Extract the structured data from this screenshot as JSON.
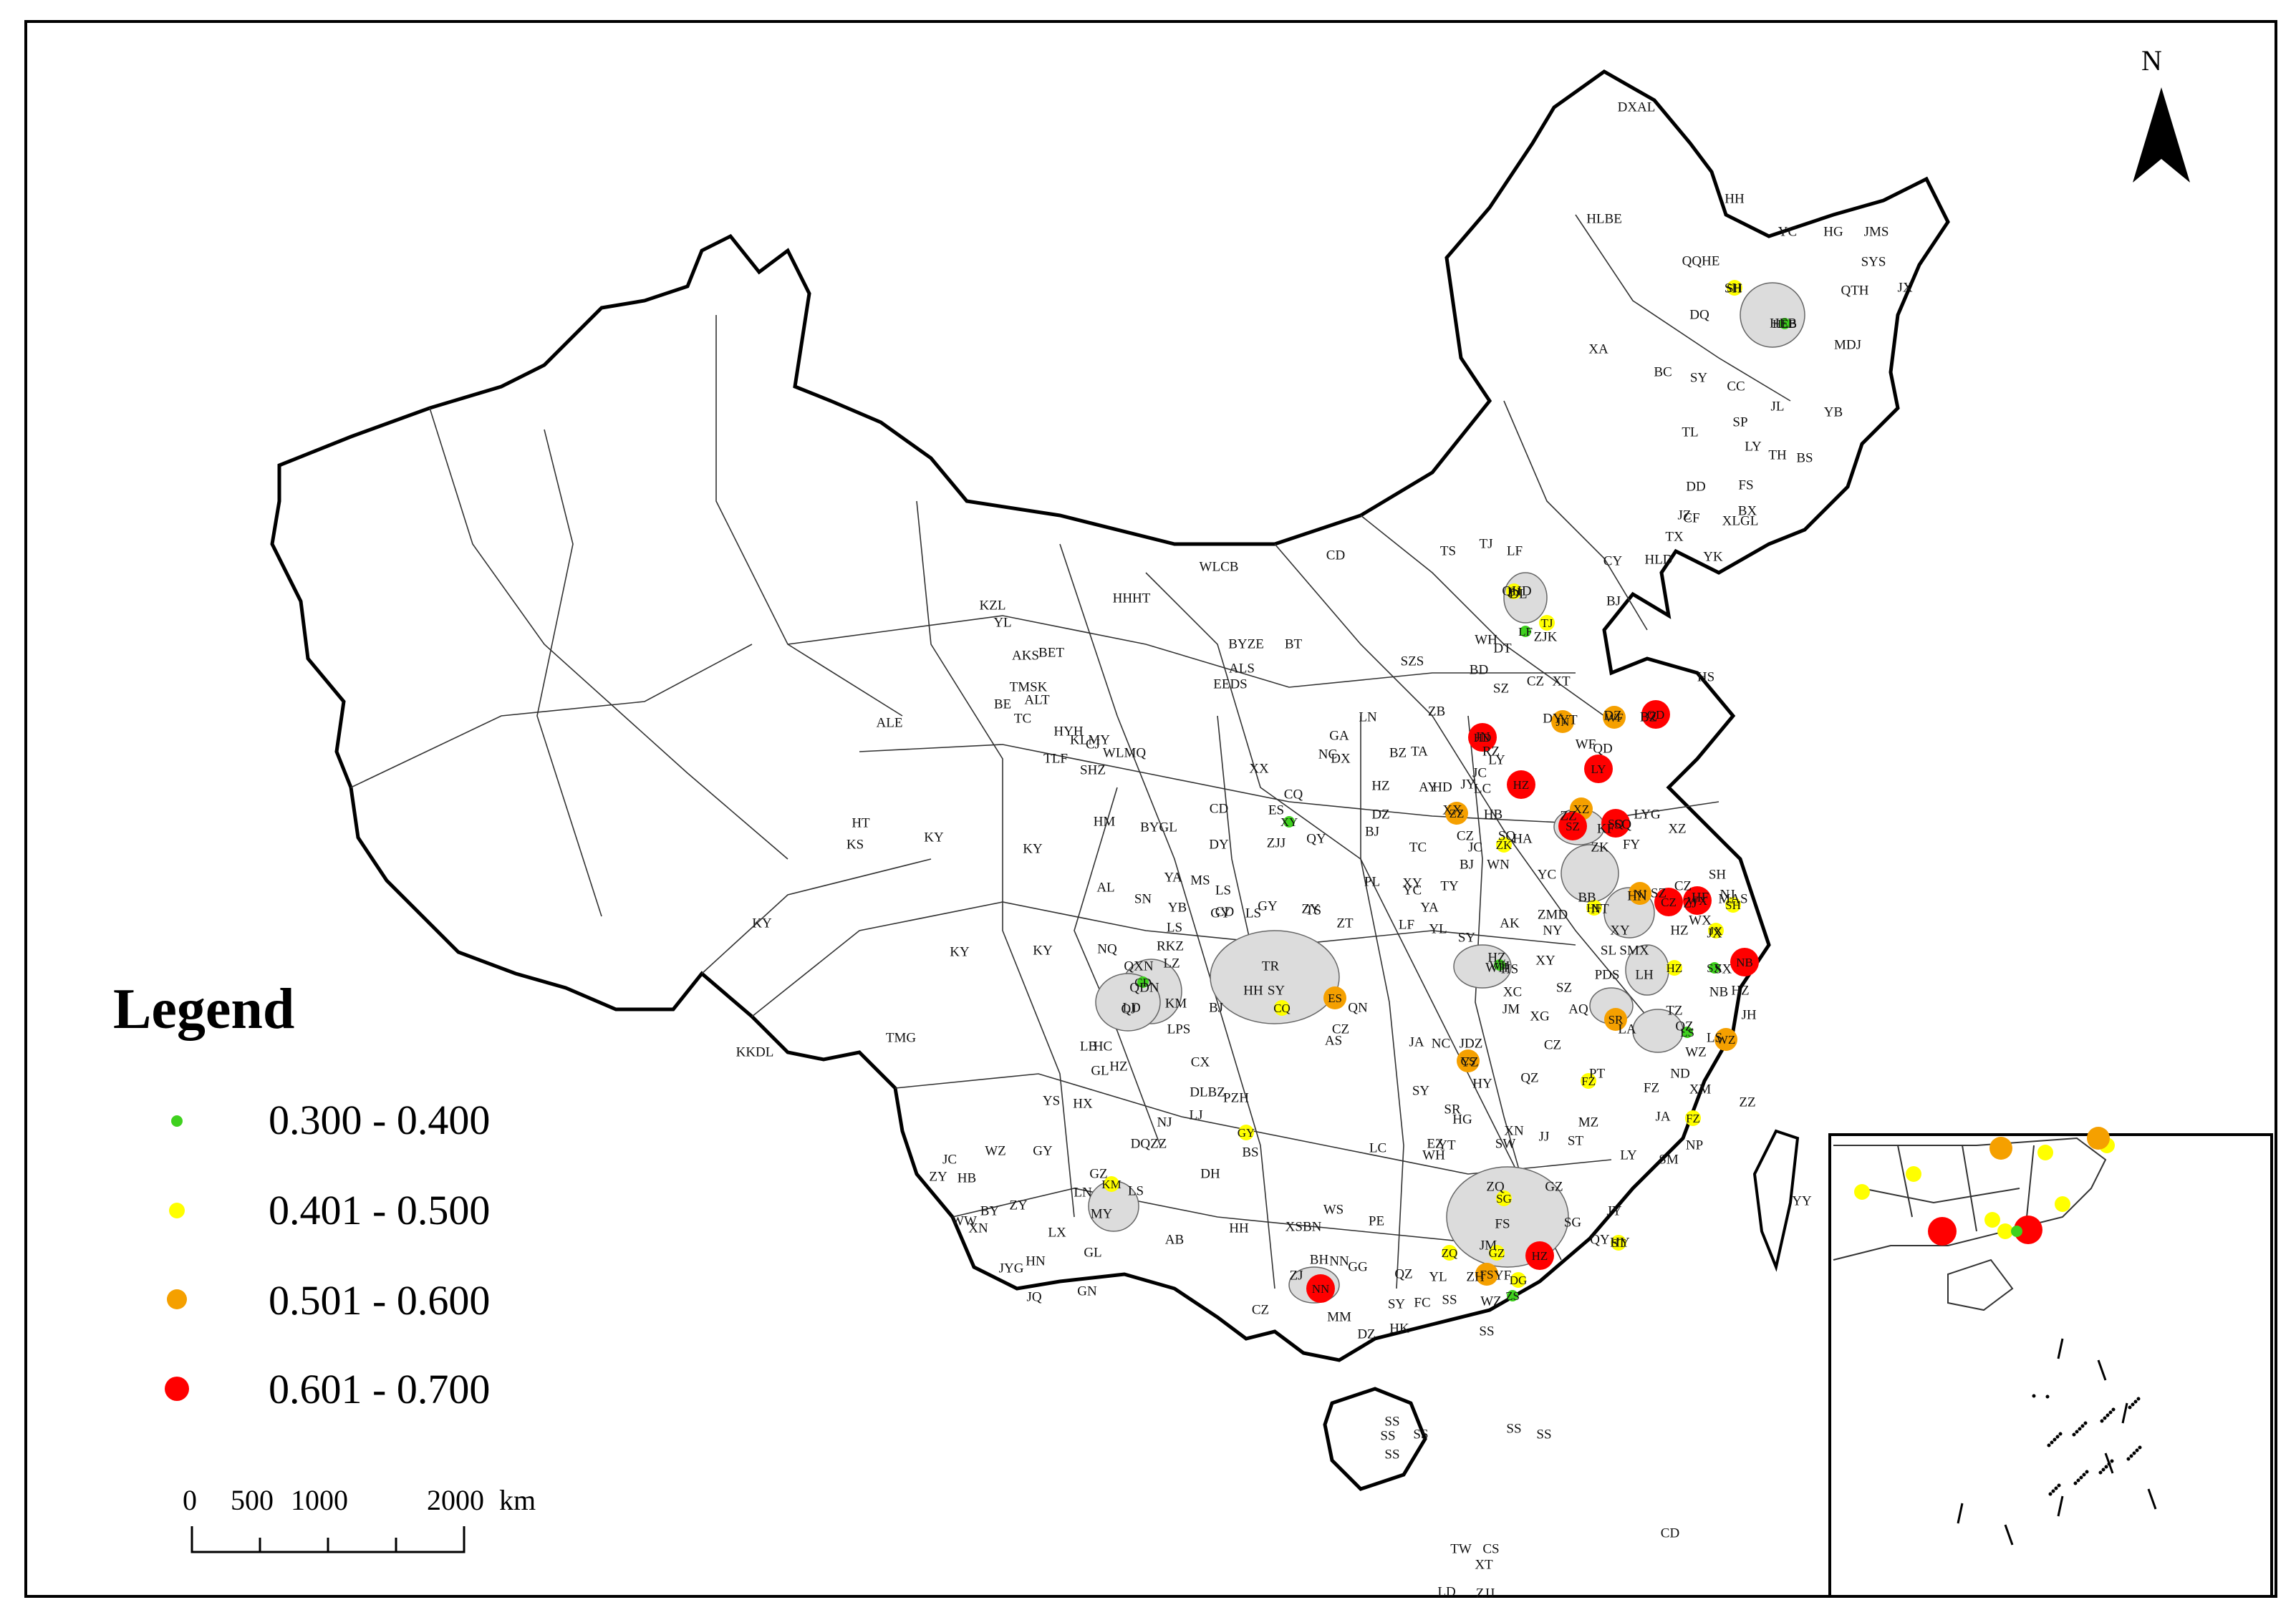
{
  "north_label": "N",
  "legend": {
    "title": "Legend",
    "classes": [
      {
        "range": "0.300 - 0.400",
        "color": "#3fd11e",
        "size": "small"
      },
      {
        "range": "0.401 - 0.500",
        "color": "#ffff00",
        "size": "medium"
      },
      {
        "range": "0.501 - 0.600",
        "color": "#f5a000",
        "size": "large"
      },
      {
        "range": "0.601 - 0.700",
        "color": "#ff0000",
        "size": "largest"
      }
    ]
  },
  "scale_bar": {
    "ticks": [
      "0",
      "500",
      "1000",
      "2000"
    ],
    "unit": "km"
  },
  "highlight_color": "#dcdcdc",
  "region_labels": [
    "DXAL",
    "HH",
    "HLBE",
    "QQHE",
    "SH",
    "HEB",
    "YC",
    "HG",
    "JMS",
    "SYS",
    "QTH",
    "JX",
    "MDJ",
    "DQ",
    "XA",
    "BC",
    "SY",
    "CC",
    "JL",
    "YB",
    "SP",
    "TL",
    "LY",
    "TH",
    "BS",
    "FS",
    "BX",
    "DD",
    "CF",
    "XLGL",
    "TX",
    "JZ",
    "YK",
    "HLD",
    "CY",
    "QHD",
    "DL",
    "ZJK",
    "BJ",
    "LF",
    "TJ",
    "TS",
    "CD",
    "WLCB",
    "HHHT",
    "BT",
    "BYZE",
    "ALS",
    "EEDS",
    "WH",
    "SZS",
    "DT",
    "SZ",
    "BD",
    "CZ",
    "XT",
    "HS",
    "DZ",
    "BZ",
    "DY",
    "YT",
    "WF",
    "QD",
    "JN",
    "ZB",
    "TA",
    "RZ",
    "LY",
    "HD",
    "AY",
    "LC",
    "JC",
    "JY",
    "XX",
    "HB",
    "KF",
    "ZZ",
    "SQ",
    "XZ",
    "LYG",
    "SQ",
    "HA",
    "YC",
    "ZK",
    "FY",
    "BB",
    "HN",
    "CZ",
    "NJ",
    "ZJ",
    "WX",
    "SH",
    "SZ",
    "NT",
    "HF",
    "MAS",
    "HZ",
    "JX",
    "SX",
    "NB",
    "HZ",
    "JH",
    "TZ",
    "QZ",
    "LS",
    "WZ",
    "ND",
    "FZ",
    "PT",
    "QZ",
    "XM",
    "ZZ",
    "JA",
    "NP",
    "SM",
    "LY",
    "MZ",
    "ST",
    "SW",
    "JY",
    "HY",
    "SG",
    "QY",
    "GZ",
    "ZQ",
    "FS",
    "JM",
    "ZH",
    "YF",
    "YL",
    "WZ",
    "GG",
    "NN",
    "QZ",
    "BH",
    "FC",
    "CZ",
    "ZJ",
    "MM",
    "HK",
    "SY",
    "DZ",
    "SS",
    "SS",
    "SS",
    "SS",
    "SS",
    "SS",
    "SS",
    "SS",
    "TW",
    "CS",
    "XT",
    "LD",
    "ZJJ",
    "CD",
    "YY",
    "YZ",
    "HY",
    "SY",
    "CZ",
    "JA",
    "NC",
    "JDZ",
    "SR",
    "YT",
    "WH",
    "HG",
    "EZ",
    "XN",
    "JJ",
    "AQ",
    "LA",
    "CZ",
    "HS",
    "XC",
    "WH",
    "JM",
    "XG",
    "SZ",
    "XY",
    "NY",
    "ZMD",
    "XY",
    "PDS",
    "LH",
    "SMX",
    "SL",
    "AK",
    "HZ",
    "SY",
    "YL",
    "YA",
    "LF",
    "YC",
    "TY",
    "JC",
    "CZ",
    "WN",
    "TC",
    "XY",
    "BJ",
    "PL",
    "QY",
    "GY",
    "TS",
    "BJ",
    "NC",
    "DX",
    "LN",
    "HZ",
    "DZ",
    "BZ",
    "GA",
    "CQ",
    "ES",
    "ZJJ",
    "XX",
    "CD",
    "DY",
    "MS",
    "YA",
    "LS",
    "LS",
    "YB",
    "ZY",
    "ZT",
    "QN",
    "TR",
    "HH",
    "SY",
    "GY",
    "BJ",
    "AS",
    "LPS",
    "QXN",
    "QDN",
    "LD",
    "HC",
    "GL",
    "HZ",
    "LB",
    "KM",
    "QJ",
    "CX",
    "DLBZ",
    "PZH",
    "LJ",
    "NJ",
    "DQZZ",
    "LS",
    "DH",
    "BS",
    "LC",
    "PE",
    "WS",
    "XSBN",
    "HH",
    "AB",
    "GZ",
    "MY",
    "LN",
    "ZY",
    "WZ",
    "GY",
    "BY",
    "LX",
    "GN",
    "HN",
    "XN",
    "HB",
    "WW",
    "JC",
    "ZY",
    "JYG",
    "JQ",
    "GL",
    "HX",
    "YS",
    "NQ",
    "RKZ",
    "LS",
    "LZ",
    "SN",
    "CD",
    "AL",
    "BYGL",
    "HM",
    "TLF",
    "CJ",
    "WLMQ",
    "SHZ",
    "KLMY",
    "HYH",
    "TC",
    "BET",
    "ALT",
    "BE",
    "YL",
    "KZL",
    "AKS",
    "TMSK",
    "ALE",
    "HT",
    "KS",
    "KY",
    "KY",
    "KY",
    "KY",
    "KY",
    "TMG",
    "KKDL"
  ],
  "cities": [
    {
      "code": "SH",
      "cls": 1
    },
    {
      "code": "HEB",
      "cls": 0
    },
    {
      "code": "BJ",
      "cls": 1
    },
    {
      "code": "LF",
      "cls": 0
    },
    {
      "code": "TJ",
      "cls": 1
    },
    {
      "code": "HD",
      "cls": 3
    },
    {
      "code": "JN",
      "cls": 2
    },
    {
      "code": "WF",
      "cls": 2
    },
    {
      "code": "QD",
      "cls": 3
    },
    {
      "code": "LY",
      "cls": 3
    },
    {
      "code": "HZ",
      "cls": 3
    },
    {
      "code": "ZZ",
      "cls": 2
    },
    {
      "code": "XZ",
      "cls": 2
    },
    {
      "code": "XY",
      "cls": 0
    },
    {
      "code": "SZ",
      "cls": 3
    },
    {
      "code": "SQ",
      "cls": 3
    },
    {
      "code": "ZK",
      "cls": 1
    },
    {
      "code": "NJ",
      "cls": 2
    },
    {
      "code": "HF",
      "cls": 1
    },
    {
      "code": "CZ",
      "cls": 3
    },
    {
      "code": "WX",
      "cls": 3
    },
    {
      "code": "SH",
      "cls": 1
    },
    {
      "code": "JX",
      "cls": 1
    },
    {
      "code": "HZ",
      "cls": 1
    },
    {
      "code": "SX",
      "cls": 0
    },
    {
      "code": "NB",
      "cls": 3
    },
    {
      "code": "CD",
      "cls": 0
    },
    {
      "code": "CQ",
      "cls": 1
    },
    {
      "code": "ES",
      "cls": 2
    },
    {
      "code": "WH",
      "cls": 0
    },
    {
      "code": "SR",
      "cls": 2
    },
    {
      "code": "LS",
      "cls": 0
    },
    {
      "code": "WZ",
      "cls": 2
    },
    {
      "code": "CS",
      "cls": 2
    },
    {
      "code": "FZ",
      "cls": 1
    },
    {
      "code": "FZ",
      "cls": 1
    },
    {
      "code": "GY",
      "cls": 1
    },
    {
      "code": "KM",
      "cls": 1
    },
    {
      "code": "SG",
      "cls": 1
    },
    {
      "code": "ZQ",
      "cls": 1
    },
    {
      "code": "GZ",
      "cls": 1
    },
    {
      "code": "HZ",
      "cls": 3
    },
    {
      "code": "FS",
      "cls": 2
    },
    {
      "code": "DG",
      "cls": 1
    },
    {
      "code": "ZS",
      "cls": 0
    },
    {
      "code": "NN",
      "cls": 3
    },
    {
      "code": "ST",
      "cls": 1
    }
  ],
  "inset_markers": [
    1,
    1,
    2,
    1,
    1,
    2,
    1,
    3,
    1,
    1,
    0,
    3
  ]
}
